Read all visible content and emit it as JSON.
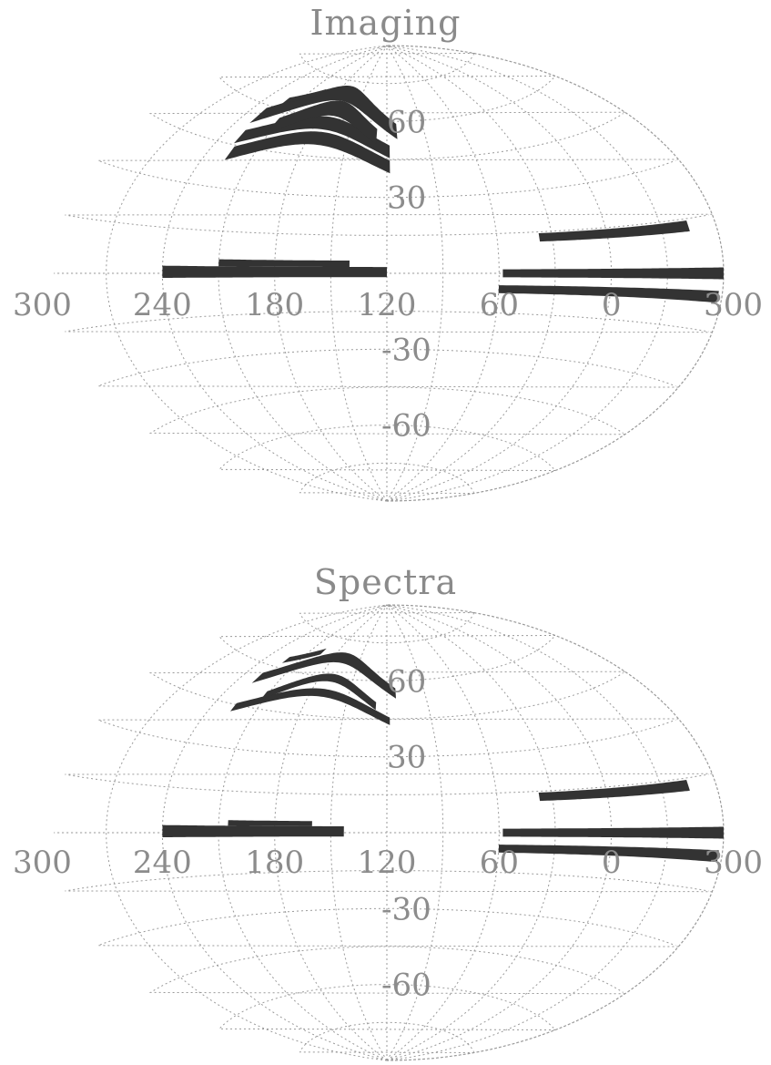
{
  "chart_data": [
    {
      "type": "scatter",
      "title": "Imaging",
      "projection": "aitoff",
      "xlabel": "",
      "ylabel": "",
      "xlim": [
        300,
        -60
      ],
      "ylim": [
        -90,
        90
      ],
      "grid": true,
      "x_tick_labels": [
        "300",
        "240",
        "180",
        "120",
        "60",
        "0",
        "300"
      ],
      "y_tick_labels": [
        "60",
        "30",
        "-30",
        "-60"
      ],
      "footprint_color": "#333333",
      "grid_color": "#9a9a9a",
      "stripes": [
        {
          "kind": "arc",
          "ra": [
            230,
            112
          ],
          "dec_center": 56,
          "dec_peak": 70,
          "width_deg": 6
        },
        {
          "kind": "arc",
          "ra": [
            228,
            118
          ],
          "dec_center": 48,
          "dec_peak": 58,
          "width_deg": 5
        },
        {
          "kind": "arc",
          "ra": [
            226,
            118
          ],
          "dec_center": 42,
          "dec_peak": 52,
          "width_deg": 5
        },
        {
          "kind": "arc",
          "ra": [
            212,
            128
          ],
          "dec_center": 54,
          "dec_peak": 64,
          "width_deg": 6
        },
        {
          "kind": "line",
          "ra": [
            222,
            196
          ],
          "dec": [
            63,
            69
          ],
          "width_deg": 2.5
        },
        {
          "kind": "band",
          "ra": [
            240,
            120
          ],
          "dec": [
            -1.5,
            2.5
          ]
        },
        {
          "kind": "band",
          "ra": [
            210,
            140
          ],
          "dec": [
            2.5,
            5
          ]
        },
        {
          "kind": "band",
          "ra": [
            58,
            -60
          ],
          "dec": [
            -1.5,
            1.5
          ]
        },
        {
          "kind": "line",
          "ra": [
            37,
            -45
          ],
          "dec": [
            13,
            13
          ],
          "width_deg": 3
        },
        {
          "kind": "line",
          "ra": [
            60,
            -58
          ],
          "dec": [
            -6,
            -6
          ],
          "width_deg": 3
        }
      ]
    },
    {
      "type": "scatter",
      "title": "Spectra",
      "projection": "aitoff",
      "xlabel": "",
      "ylabel": "",
      "xlim": [
        300,
        -60
      ],
      "ylim": [
        -90,
        90
      ],
      "grid": true,
      "x_tick_labels": [
        "300",
        "240",
        "180",
        "120",
        "60",
        "0",
        "300"
      ],
      "y_tick_labels": [
        "60",
        "30",
        "-30",
        "-60"
      ],
      "footprint_color": "#333333",
      "grid_color": "#9a9a9a",
      "stripes": [
        {
          "kind": "arc",
          "ra": [
            228,
            113
          ],
          "dec_center": 55,
          "dec_peak": 68,
          "width_deg": 4
        },
        {
          "kind": "arc",
          "ra": [
            226,
            118
          ],
          "dec_center": 44,
          "dec_peak": 54,
          "width_deg": 3
        },
        {
          "kind": "arc",
          "ra": [
            212,
            128
          ],
          "dec_center": 50,
          "dec_peak": 60,
          "width_deg": 3
        },
        {
          "kind": "line",
          "ra": [
            222,
            196
          ],
          "dec": [
            63,
            69
          ],
          "width_deg": 2.5
        },
        {
          "kind": "band",
          "ra": [
            240,
            143
          ],
          "dec": [
            -1.5,
            2.5
          ]
        },
        {
          "kind": "band",
          "ra": [
            205,
            160
          ],
          "dec": [
            2.5,
            4.5
          ]
        },
        {
          "kind": "band",
          "ra": [
            58,
            -60
          ],
          "dec": [
            -1.5,
            1.5
          ]
        },
        {
          "kind": "line",
          "ra": [
            37,
            -45
          ],
          "dec": [
            13,
            13
          ],
          "width_deg": 3
        },
        {
          "kind": "line",
          "ra": [
            60,
            -58
          ],
          "dec": [
            -6,
            -6
          ],
          "width_deg": 3
        }
      ]
    }
  ]
}
